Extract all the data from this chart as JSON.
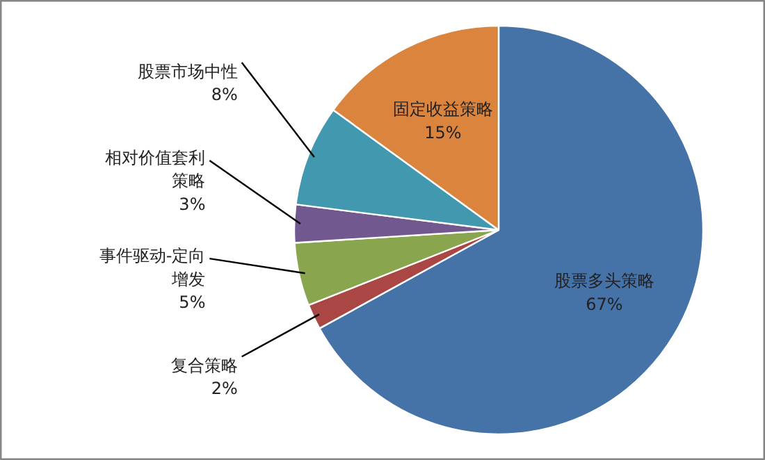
{
  "chart_data": {
    "type": "pie",
    "categories": [
      "股票多头策略",
      "复合策略",
      "事件驱动-定向增发",
      "相对价值套利策略",
      "股票市场中性",
      "固定收益策略"
    ],
    "values": [
      67,
      2,
      5,
      3,
      8,
      15
    ],
    "colors": [
      "#4572a7",
      "#aa4643",
      "#89a54e",
      "#71588f",
      "#4198af",
      "#db843d"
    ],
    "value_labels": [
      "67%",
      "2%",
      "5%",
      "3%",
      "8%",
      "15%"
    ]
  }
}
